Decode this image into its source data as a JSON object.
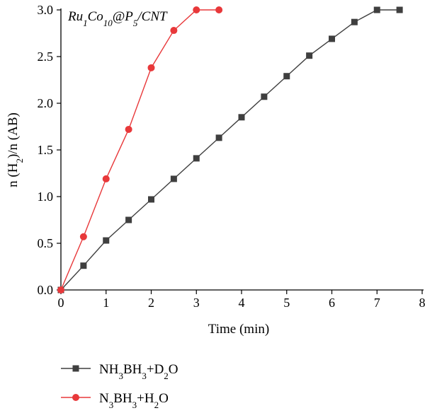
{
  "chart_data": {
    "type": "line",
    "annotation": {
      "parts": [
        {
          "t": "Ru",
          "sub": false
        },
        {
          "t": "1",
          "sub": true
        },
        {
          "t": "Co",
          "sub": false
        },
        {
          "t": "10",
          "sub": true
        },
        {
          "t": "@P",
          "sub": false
        },
        {
          "t": "5",
          "sub": true
        },
        {
          "t": "/CNT",
          "sub": false
        }
      ]
    },
    "xlabel": "Time (min)",
    "ylabel": {
      "parts": [
        {
          "t": "n (H",
          "sub": false
        },
        {
          "t": "2",
          "sub": true
        },
        {
          "t": ")/n (AB)",
          "sub": false
        }
      ]
    },
    "xlim": [
      0,
      8
    ],
    "ylim": [
      0,
      3.0
    ],
    "xticks": [
      0,
      1,
      2,
      3,
      4,
      5,
      6,
      7,
      8
    ],
    "xtick_labels": [
      "0",
      "1",
      "2",
      "3",
      "4",
      "5",
      "6",
      "7",
      "8"
    ],
    "yticks": [
      0,
      0.5,
      1.0,
      1.5,
      2.0,
      2.5,
      3.0
    ],
    "ytick_labels": [
      "0.0",
      "0.5",
      "1.0",
      "1.5",
      "2.0",
      "2.5",
      "3.0"
    ],
    "grid": false,
    "legend_position": "bottom-left, below plot",
    "series": [
      {
        "name_parts": [
          {
            "t": "NH",
            "sub": false
          },
          {
            "t": "3",
            "sub": true
          },
          {
            "t": "BH",
            "sub": false
          },
          {
            "t": "3",
            "sub": true
          },
          {
            "t": "+D",
            "sub": false
          },
          {
            "t": "2",
            "sub": true
          },
          {
            "t": "O",
            "sub": false
          }
        ],
        "color": "#3f3f3f",
        "marker": "square",
        "x": [
          0,
          0.5,
          1.0,
          1.5,
          2.0,
          2.5,
          3.0,
          3.5,
          4.0,
          4.5,
          5.0,
          5.5,
          6.0,
          6.5,
          7.0,
          7.5
        ],
        "y": [
          0,
          0.26,
          0.53,
          0.75,
          0.97,
          1.19,
          1.41,
          1.63,
          1.85,
          2.07,
          2.29,
          2.51,
          2.69,
          2.87,
          3.0,
          3.0
        ]
      },
      {
        "name_parts": [
          {
            "t": "N",
            "sub": false
          },
          {
            "t": "3",
            "sub": true
          },
          {
            "t": "BH",
            "sub": false
          },
          {
            "t": "3",
            "sub": true
          },
          {
            "t": "+H",
            "sub": false
          },
          {
            "t": "2",
            "sub": true
          },
          {
            "t": "O",
            "sub": false
          }
        ],
        "color": "#e8383a",
        "marker": "circle",
        "x": [
          0,
          0.5,
          1.0,
          1.5,
          2.0,
          2.5,
          3.0,
          3.5
        ],
        "y": [
          0,
          0.57,
          1.19,
          1.72,
          2.38,
          2.78,
          3.0,
          3.0
        ]
      }
    ]
  }
}
